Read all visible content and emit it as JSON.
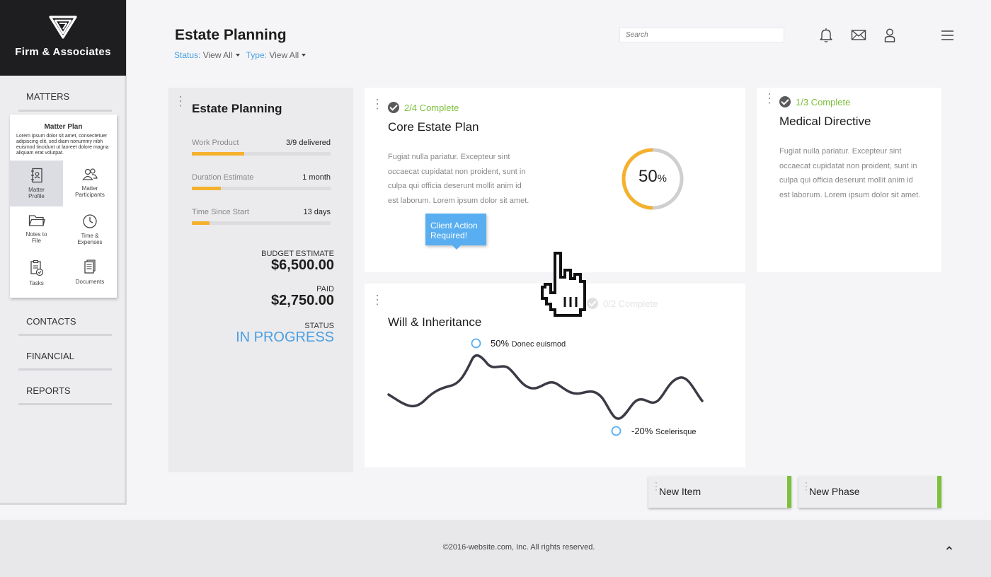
{
  "brand": {
    "name": "Firm & Associates"
  },
  "sidebar": {
    "sections": [
      "MATTERS",
      "CONTACTS",
      "FINANCIAL",
      "REPORTS"
    ],
    "submenu": {
      "title": "Matter Plan",
      "description": "Lorem ipsum dolor sit amet, consectetuer adipiscing elit, sed diam nonummy nibh euismod tincidunt ut laoreet dolore magna aliquam erat volutpat.",
      "items": [
        {
          "label": "Matter Profile",
          "icon": "profile-book-icon",
          "active": true
        },
        {
          "label": "Matter Participants",
          "icon": "participants-icon",
          "active": false
        },
        {
          "label": "Notes to File",
          "icon": "folder-icon",
          "active": false
        },
        {
          "label": "Time & Expenses",
          "icon": "clock-icon",
          "active": false
        },
        {
          "label": "Tasks",
          "icon": "clipboard-check-icon",
          "active": false
        },
        {
          "label": "Documents",
          "icon": "documents-icon",
          "active": false
        }
      ]
    }
  },
  "header": {
    "title": "Estate Planning",
    "status_label": "Status:",
    "status_value": "View All",
    "type_label": "Type:",
    "type_value": "View All",
    "search_placeholder": "Search",
    "icons": [
      "bell-icon",
      "mail-icon",
      "user-icon",
      "menu-icon"
    ]
  },
  "summary": {
    "title": "Estate Planning",
    "metrics": [
      {
        "label": "Work Product",
        "value": "3/9 delivered",
        "progress": 0.38
      },
      {
        "label": "Duration Estimate",
        "value": "1 month",
        "progress": 0.21
      },
      {
        "label": "Time Since Start",
        "value": "13 days",
        "progress": 0.13
      }
    ],
    "budget_label": "BUDGET ESTIMATE",
    "budget_value": "$6,500.00",
    "paid_label": "PAID",
    "paid_value": "$2,750.00",
    "status_label": "STATUS",
    "status_value": "IN PROGRESS"
  },
  "cards": {
    "core": {
      "status": "2/4 Complete",
      "title": "Core Estate Plan",
      "body": "Fugiat nulla pariatur. Excepteur sint occaecat cupidatat non proident, sunt in culpa qui officia deserunt mollit anim id est laborum. Lorem ipsum dolor sit amet.",
      "tooltip": "Client Action Required!",
      "donut_percent": 0.5,
      "donut_value": "50",
      "donut_unit": "%"
    },
    "medical": {
      "status": "1/3 Complete",
      "title": "Medical Directive",
      "body": "Fugiat nulla pariatur. Excepteur sint occaecat cupidatat non proident, sunt in culpa qui officia deserunt mollit anim id est laborum. Lorem ipsum dolor sit amet."
    },
    "will": {
      "status": "0/2 Complete",
      "title": "Will & Inheritance",
      "high_value": "50%",
      "high_label": "Donec euismod",
      "low_value": "-20%",
      "low_label": "Scelerisque"
    }
  },
  "actions": {
    "new_item": "New Item",
    "new_phase": "New Phase"
  },
  "footer": {
    "copyright": "©2016-website.com, Inc. All rights reserved."
  },
  "colors": {
    "accent_blue": "#4a9ee0",
    "progress_orange": "#f5b12e",
    "complete_green": "#7bbf3a",
    "brand_dark": "#1e1e20"
  }
}
